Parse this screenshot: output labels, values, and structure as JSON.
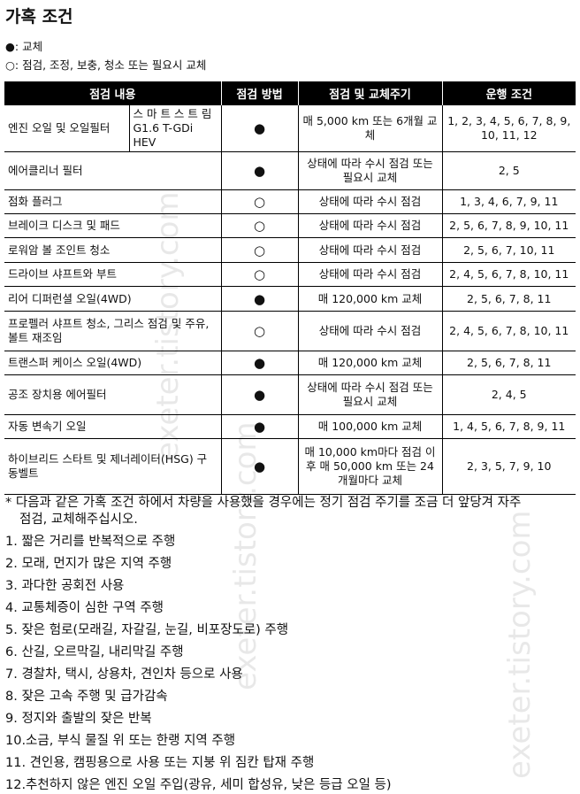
{
  "title": "가혹 조건",
  "legend": [
    "●: 교체",
    "○: 점검, 조정, 보충, 청소 또는 필요시 교체"
  ],
  "table": {
    "headers": [
      "점검 내용",
      "점검 방법",
      "점검 및 교체주기",
      "운행 조건"
    ],
    "rows": [
      {
        "item": "엔진 오일 및 오일필터",
        "sub": "스 마 트 스 트 림 G1.6 T-GDi HEV",
        "method": "●",
        "cycle": "매 5,000 km 또는 6개월 교체",
        "conditions": "1, 2, 3, 4, 5, 6, 7, 8, 9, 10, 11, 12"
      },
      {
        "item": "에어클리너 필터",
        "method": "●",
        "cycle": "상태에 따라 수시 점검 또는 필요시 교체",
        "conditions": "2, 5"
      },
      {
        "item": "점화 플러그",
        "method": "○",
        "cycle": "상태에 따라 수시 점검",
        "conditions": "1, 3, 4, 6, 7, 9, 11"
      },
      {
        "item": "브레이크 디스크 및 패드",
        "method": "○",
        "cycle": "상태에 따라 수시 점검",
        "conditions": "2, 5, 6, 7, 8, 9, 10, 11"
      },
      {
        "item": "로워암 볼 조인트 청소",
        "method": "○",
        "cycle": "상태에 따라 수시 점검",
        "conditions": "2, 5, 6, 7, 10, 11"
      },
      {
        "item": "드라이브 샤프트와 부트",
        "method": "○",
        "cycle": "상태에 따라 수시 점검",
        "conditions": "2, 4, 5, 6, 7, 8, 10, 11"
      },
      {
        "item": "리어 디퍼런셜 오일(4WD)",
        "method": "●",
        "cycle": "매 120,000 km 교체",
        "conditions": "2, 5, 6, 7, 8, 11"
      },
      {
        "item": "프로펠러 샤프트 청소, 그리스 점검 및 주유, 볼트 재조임",
        "method": "○",
        "cycle": "상태에 따라 수시 점검",
        "conditions": "2, 4, 5, 6, 7, 8, 10, 11"
      },
      {
        "item": "트랜스퍼 케이스 오일(4WD)",
        "method": "●",
        "cycle": "매 120,000 km 교체",
        "conditions": "2, 5, 6, 7, 8, 11"
      },
      {
        "item": "공조 장치용 에어필터",
        "method": "●",
        "cycle": "상태에 따라 수시 점검 또는 필요시 교체",
        "conditions": "2, 4, 5"
      },
      {
        "item": "자동 변속기 오일",
        "method": "●",
        "cycle": "매 100,000 km 교체",
        "conditions": "1, 4, 5, 6, 7, 8, 9, 11"
      },
      {
        "item": "하이브리드 스타트 및 제너레이터(HSG) 구동벨트",
        "method": "●",
        "cycle": "매 10,000 km마다 점검 이후 매 50,000 km 또는 24개월마다 교체",
        "conditions": "2, 3, 5, 7, 9, 10"
      }
    ]
  },
  "note": "* 다음과 같은 가혹 조건 하에서 차량을 사용했을 경우에는 정기 점검 주기를 조금 더 앞당겨 자주",
  "note2": "점검, 교체해주십시오.",
  "conditions": [
    "1. 짧은 거리를 반복적으로 주행",
    "2. 모래, 먼지가 많은 지역 주행",
    "3. 과다한 공회전 사용",
    "4. 교통체증이 심한 구역 주행",
    "5. 잦은 험로(모래길, 자갈길, 눈길, 비포장도로) 주행",
    "6. 산길, 오르막길, 내리막길 주행",
    "7. 경찰차, 택시, 상용차, 견인차 등으로 사용",
    "8. 잦은 고속 주행 및 급가감속",
    "9. 정지와 출발의 잦은 반복",
    "10.소금, 부식 물질 위 또는 한랭 지역 주행",
    "11. 견인용, 캠핑용으로 사용 또는 지붕 위 짐칸 탑재 주행",
    "12.추천하지 않은 엔진 오일 주입(광유, 세미 합성유, 낮은 등급 오일 등)"
  ],
  "watermark": "exeter.tistory.com"
}
